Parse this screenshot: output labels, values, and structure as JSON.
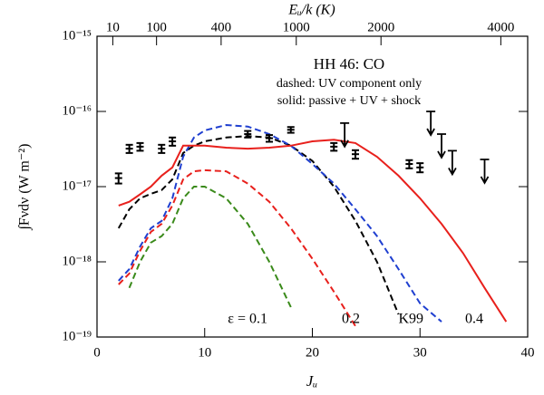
{
  "chart_data": {
    "type": "line",
    "title": "HH 46: CO",
    "annotations": [
      "dashed: UV component only",
      "solid: passive + UV + shock"
    ],
    "x_label": "Jᵤ",
    "y_label": "∫Fνdν (W m⁻²)",
    "x2_label": "Eᵤ/k (K)",
    "xlim": [
      0,
      40
    ],
    "xticks": [
      0,
      10,
      20,
      30,
      40
    ],
    "ylim": [
      1e-19,
      1e-15
    ],
    "yscale": "log",
    "yticks": [
      {
        "value": 1e-19,
        "label": "10⁻¹⁹"
      },
      {
        "value": 1e-18,
        "label": "10⁻¹⁸"
      },
      {
        "value": 1e-17,
        "label": "10⁻¹⁷"
      },
      {
        "value": 1e-16,
        "label": "10⁻¹⁶"
      },
      {
        "value": 1e-15,
        "label": "10⁻¹⁵"
      }
    ],
    "x2ticks": [
      10,
      100,
      400,
      1000,
      2000,
      4000
    ],
    "x2_kelvin_per_J_J1": 2.77,
    "x": [
      2,
      3,
      4,
      5,
      6,
      7,
      8,
      9,
      10,
      12,
      14,
      16,
      18,
      20,
      22,
      24,
      26,
      28,
      30,
      32,
      34,
      36,
      38,
      40
    ],
    "series": [
      {
        "name": "ε = 0.1",
        "color": "#3a8a1a",
        "dashed": true,
        "values": [
          null,
          4.5e-19,
          1e-18,
          1.8e-18,
          2.2e-18,
          3.2e-18,
          7e-18,
          1e-17,
          1e-17,
          7e-18,
          3.2e-18,
          1e-18,
          2.5e-19,
          null,
          null,
          null,
          null,
          null,
          null,
          null,
          null,
          null,
          null,
          null
        ]
      },
      {
        "name": "0.2",
        "color": "#e8201c",
        "dashed": true,
        "values": [
          5e-19,
          7e-19,
          1.4e-18,
          2.5e-18,
          3.2e-18,
          5.6e-18,
          1.25e-17,
          1.6e-17,
          1.65e-17,
          1.6e-17,
          1.1e-17,
          6.3e-18,
          2.8e-18,
          1.1e-18,
          4e-19,
          1.4e-19,
          null,
          null,
          null,
          null,
          null,
          null,
          null,
          null
        ]
      },
      {
        "name": "K99",
        "color": "#000000",
        "dashed": true,
        "values": [
          2.8e-18,
          5e-18,
          7e-18,
          8e-18,
          9e-18,
          1.25e-17,
          2.8e-17,
          3.5e-17,
          4e-17,
          4.5e-17,
          4.7e-17,
          4.5e-17,
          3.5e-17,
          2.2e-17,
          1e-17,
          3.5e-18,
          1e-18,
          2e-19,
          null,
          null,
          null,
          null,
          null,
          null
        ]
      },
      {
        "name": "0.4",
        "color": "#1f3fd0",
        "dashed": true,
        "values": [
          5.6e-19,
          8e-19,
          1.6e-18,
          2.8e-18,
          3.5e-18,
          7e-18,
          2.5e-17,
          4.5e-17,
          5.6e-17,
          6.6e-17,
          6.3e-17,
          5e-17,
          3.5e-17,
          2e-17,
          1.1e-17,
          5e-18,
          2.2e-18,
          8e-19,
          2.8e-19,
          1.6e-19,
          null,
          null,
          null,
          null
        ]
      },
      {
        "color": "#e8201c",
        "dashed": false,
        "values": [
          5.6e-18,
          6.3e-18,
          7.9e-18,
          1e-17,
          1.4e-17,
          1.8e-17,
          3.5e-17,
          3.5e-17,
          3.5e-17,
          3.3e-17,
          3.2e-17,
          3.3e-17,
          3.5e-17,
          4e-17,
          4.2e-17,
          3.8e-17,
          2.5e-17,
          1.4e-17,
          7e-18,
          3.2e-18,
          1.3e-18,
          4.5e-19,
          1.6e-19,
          null
        ]
      }
    ],
    "points": {
      "x": [
        2,
        3,
        4,
        6,
        7,
        14,
        16,
        18,
        22,
        24,
        29,
        30
      ],
      "values": [
        1.3e-17,
        3.2e-17,
        3.4e-17,
        3.2e-17,
        4e-17,
        5e-17,
        4.4e-17,
        5.7e-17,
        3.4e-17,
        2.7e-17,
        2e-17,
        1.8e-17
      ],
      "errors": [
        2e-18,
        4e-18,
        4e-18,
        4e-18,
        5e-18,
        5e-18,
        4.5e-18,
        5e-18,
        4e-18,
        3.5e-18,
        2.5e-18,
        2.5e-18
      ],
      "color": "#000000"
    },
    "upper_limits": {
      "x": [
        23,
        31,
        32,
        33,
        36
      ],
      "values": [
        7e-17,
        1e-16,
        5e-17,
        3e-17,
        2.3e-17
      ],
      "color": "#000000"
    }
  }
}
